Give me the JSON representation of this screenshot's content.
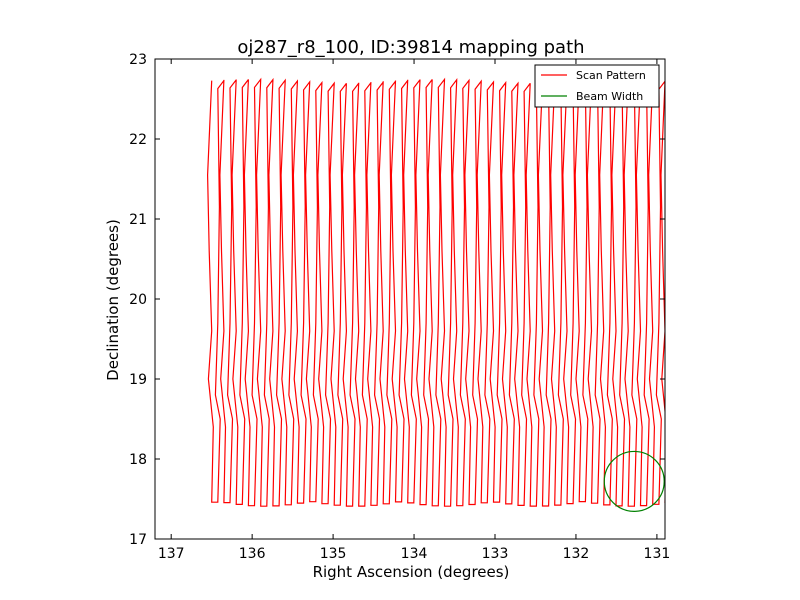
{
  "chart_data": {
    "type": "line",
    "title": "oj287_r8_100, ID:39814 mapping path",
    "xlabel": "Right Ascension (degrees)",
    "ylabel": "Declination (degrees)",
    "xlim": [
      137.2,
      130.9
    ],
    "ylim": [
      17,
      23
    ],
    "x_inverted": true,
    "xticks": [
      137,
      136,
      135,
      134,
      133,
      132,
      131
    ],
    "yticks": [
      17,
      18,
      19,
      20,
      21,
      22,
      23
    ],
    "grid": false,
    "legend_position": "top-right",
    "series": [
      {
        "name": "Scan Pattern",
        "color": "#ff0000",
        "kind": "raster-scan",
        "ra_start": 136.5,
        "ra_end": 130.9,
        "column_count": 38,
        "dec_top": 22.72,
        "dec_bottom": 17.47,
        "dec_breaks": [
          21.55,
          20.6,
          19.6,
          19.0,
          18.4
        ]
      },
      {
        "name": "Beam Width",
        "color": "#008000",
        "kind": "circle",
        "center_ra": 131.28,
        "center_dec": 17.72,
        "radius_deg": 0.37
      }
    ]
  }
}
